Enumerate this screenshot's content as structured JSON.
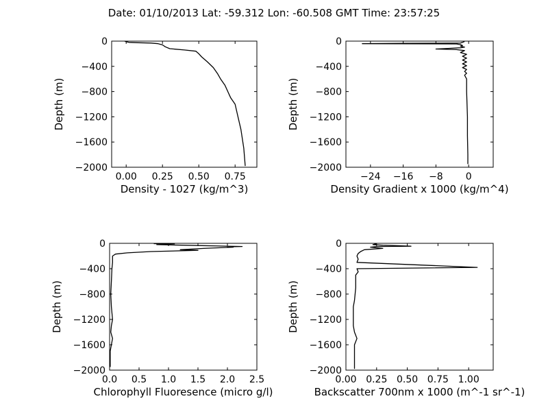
{
  "figure": {
    "title": "Date: 01/10/2013  Lat:  -59.312 Lon:  -60.508  GMT Time: 23:57:25"
  },
  "chart_data": [
    {
      "type": "line",
      "xlabel": "Density - 1027 (kg/m^3)",
      "ylabel": "Depth (m)",
      "xlim": [
        -0.1,
        0.9
      ],
      "ylim": [
        -2000,
        0
      ],
      "xticks": [
        0.0,
        0.25,
        0.5,
        0.75
      ],
      "xtick_labels": [
        "0.00",
        "0.25",
        "0.50",
        "0.75"
      ],
      "yticks": [
        0,
        -400,
        -800,
        -1200,
        -1600,
        -2000
      ],
      "ytick_labels": [
        "0",
        "−400",
        "−800",
        "−1200",
        "−1600",
        "−2000"
      ],
      "grid": false,
      "series": [
        {
          "x": [
            -0.01,
            0.0,
            0.02,
            0.08,
            0.17,
            0.22,
            0.25,
            0.27,
            0.3,
            0.4,
            0.48,
            0.5,
            0.52,
            0.56,
            0.6,
            0.63,
            0.65,
            0.68,
            0.7,
            0.72,
            0.75,
            0.77,
            0.79,
            0.81,
            0.82
          ],
          "y": [
            0,
            -10,
            -20,
            -25,
            -30,
            -40,
            -60,
            -90,
            -120,
            -140,
            -160,
            -200,
            -250,
            -330,
            -420,
            -520,
            -600,
            -700,
            -800,
            -900,
            -1000,
            -1200,
            -1400,
            -1700,
            -1980
          ]
        }
      ]
    },
    {
      "type": "line",
      "xlabel": "Density Gradient x 1000 (kg/m^4)",
      "ylabel": "Depth (m)",
      "xlim": [
        -30,
        6
      ],
      "ylim": [
        -2000,
        0
      ],
      "xticks": [
        -24,
        -16,
        -8,
        0
      ],
      "xtick_labels": [
        "−24",
        "−16",
        "−8",
        "0"
      ],
      "yticks": [
        0,
        -400,
        -800,
        -1200,
        -1600,
        -2000
      ],
      "ytick_labels": [
        "0",
        "−400",
        "−800",
        "−1200",
        "−1600",
        "−2000"
      ],
      "grid": false,
      "series": [
        {
          "x": [
            -1,
            -1.5,
            -2,
            -15,
            -26,
            -3,
            -2,
            -1.5,
            -2,
            -1,
            -2,
            -5,
            -8,
            -3,
            -1,
            -2,
            -0.5,
            -1.5,
            -0.5,
            -1.5,
            -0.5,
            -1.5,
            -0.5,
            -1.5,
            -0.5,
            -1,
            -0.5,
            -1,
            -0.5,
            -0.5,
            -0.3,
            -0.3,
            -0.2,
            -0.2
          ],
          "y": [
            -5,
            -20,
            -30,
            -35,
            -40,
            -45,
            -55,
            -70,
            -80,
            -95,
            -105,
            -115,
            -125,
            -135,
            -150,
            -180,
            -210,
            -240,
            -270,
            -300,
            -330,
            -360,
            -390,
            -420,
            -450,
            -480,
            -510,
            -540,
            -600,
            -800,
            -1200,
            -1500,
            -1800,
            -1950
          ]
        }
      ]
    },
    {
      "type": "line",
      "xlabel": "Chlorophyll Fluoresence (micro g/l)",
      "ylabel": "Depth (m)",
      "xlim": [
        0.0,
        2.5
      ],
      "ylim": [
        -2000,
        0
      ],
      "xticks": [
        0.0,
        0.5,
        1.0,
        1.5,
        2.0,
        2.5
      ],
      "xtick_labels": [
        "0.0",
        "0.5",
        "1.0",
        "1.5",
        "2.0",
        "2.5"
      ],
      "yticks": [
        0,
        -400,
        -800,
        -1200,
        -1600,
        -2000
      ],
      "ytick_labels": [
        "0",
        "−400",
        "−800",
        "−1200",
        "−1600",
        "−2000"
      ],
      "grid": false,
      "series": [
        {
          "x": [
            0.75,
            1.1,
            0.8,
            2.25,
            2.0,
            2.1,
            1.6,
            1.2,
            1.5,
            0.7,
            0.3,
            0.1,
            0.05,
            0.05,
            0.04,
            0.03,
            0.02,
            0.03,
            0.05,
            0.03,
            0.02,
            0.05,
            0.01,
            0.01
          ],
          "y": [
            -5,
            -10,
            -20,
            -50,
            -55,
            -60,
            -80,
            -100,
            -110,
            -130,
            -150,
            -170,
            -200,
            -300,
            -400,
            -600,
            -800,
            -1000,
            -1200,
            -1300,
            -1400,
            -1500,
            -1700,
            -1950
          ]
        }
      ]
    },
    {
      "type": "line",
      "xlabel": "Backscatter 700nm x 1000 (m^-1 sr^-1)",
      "ylabel": "Depth (m)",
      "xlim": [
        0.0,
        1.2
      ],
      "ylim": [
        -2000,
        0
      ],
      "xticks": [
        0.0,
        0.25,
        0.5,
        0.75,
        1.0
      ],
      "xtick_labels": [
        "0.00",
        "0.25",
        "0.50",
        "0.75",
        "1.00"
      ],
      "yticks": [
        0,
        -400,
        -800,
        -1200,
        -1600,
        -2000
      ],
      "ytick_labels": [
        "0",
        "−400",
        "−800",
        "−1200",
        "−1600",
        "−2000"
      ],
      "grid": false,
      "series": [
        {
          "x": [
            0.25,
            0.22,
            0.3,
            0.45,
            0.53,
            0.25,
            0.2,
            0.3,
            0.15,
            0.12,
            0.1,
            0.09,
            0.1,
            0.09,
            1.07,
            0.09,
            0.1,
            0.08,
            0.08,
            0.07,
            0.06,
            0.06,
            0.07,
            0.09,
            0.07,
            0.07,
            0.07
          ],
          "y": [
            -5,
            -20,
            -30,
            -40,
            -45,
            -50,
            -60,
            -80,
            -100,
            -130,
            -160,
            -200,
            -250,
            -300,
            -380,
            -400,
            -450,
            -500,
            -700,
            -900,
            -1000,
            -1300,
            -1400,
            -1500,
            -1600,
            -1800,
            -1980
          ]
        }
      ]
    }
  ]
}
